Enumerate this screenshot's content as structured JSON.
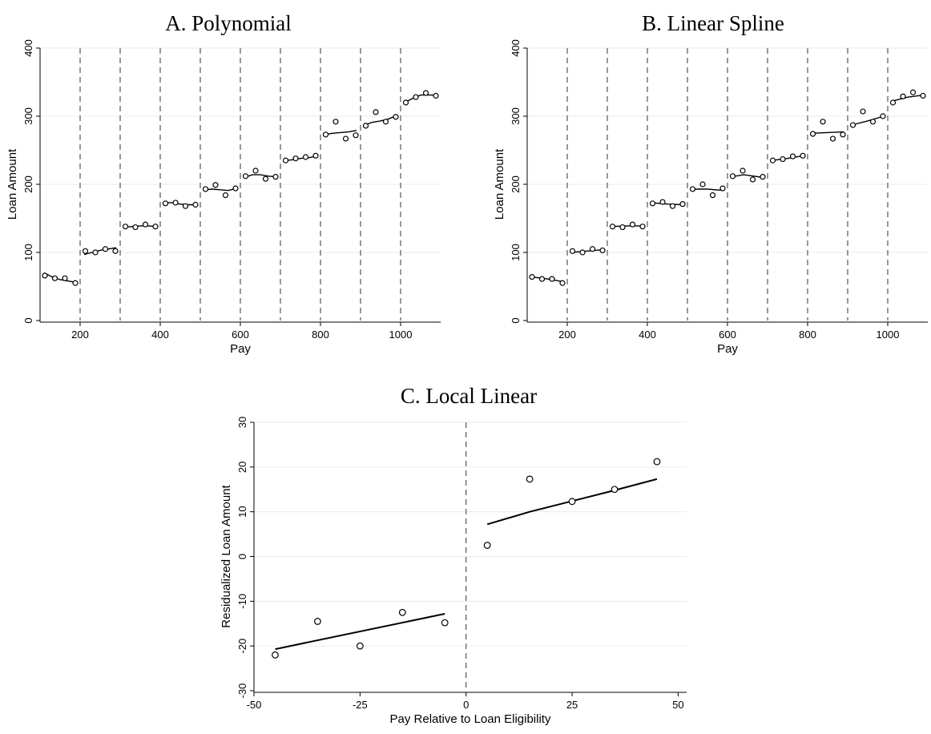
{
  "chart_data": [
    {
      "type": "scatter",
      "title": "A. Polynomial",
      "xlabel": "Pay",
      "ylabel": "Loan Amount",
      "xlim": [
        100,
        1100
      ],
      "ylim": [
        0,
        400
      ],
      "xticks": [
        "200",
        "400",
        "600",
        "800",
        "1000"
      ],
      "yticks": [
        "0",
        "100",
        "200",
        "300",
        "400"
      ],
      "grid": true,
      "cutoffs": [
        200,
        300,
        400,
        500,
        600,
        700,
        800,
        900,
        1000
      ],
      "points": [
        [
          112,
          66
        ],
        [
          137,
          62
        ],
        [
          162,
          62
        ],
        [
          188,
          55
        ],
        [
          213,
          102
        ],
        [
          238,
          100
        ],
        [
          263,
          105
        ],
        [
          288,
          102
        ],
        [
          313,
          138
        ],
        [
          338,
          137
        ],
        [
          363,
          141
        ],
        [
          388,
          138
        ],
        [
          413,
          172
        ],
        [
          438,
          173
        ],
        [
          463,
          168
        ],
        [
          488,
          170
        ],
        [
          513,
          193
        ],
        [
          538,
          199
        ],
        [
          563,
          184
        ],
        [
          588,
          194
        ],
        [
          613,
          212
        ],
        [
          638,
          220
        ],
        [
          663,
          208
        ],
        [
          688,
          211
        ],
        [
          713,
          235
        ],
        [
          738,
          238
        ],
        [
          763,
          240
        ],
        [
          788,
          242
        ],
        [
          813,
          273
        ],
        [
          838,
          292
        ],
        [
          863,
          267
        ],
        [
          888,
          272
        ],
        [
          913,
          286
        ],
        [
          938,
          306
        ],
        [
          963,
          292
        ],
        [
          988,
          299
        ],
        [
          1013,
          320
        ],
        [
          1038,
          328
        ],
        [
          1063,
          334
        ],
        [
          1088,
          330
        ]
      ],
      "fit_lines": [
        [
          [
            110,
            70
          ],
          [
            130,
            64
          ],
          [
            150,
            60
          ],
          [
            170,
            58
          ],
          [
            190,
            56
          ]
        ],
        [
          [
            210,
            97
          ],
          [
            230,
            100
          ],
          [
            250,
            103
          ],
          [
            270,
            105
          ],
          [
            290,
            107
          ]
        ],
        [
          [
            310,
            137
          ],
          [
            330,
            138
          ],
          [
            350,
            139
          ],
          [
            370,
            139
          ],
          [
            390,
            138
          ]
        ],
        [
          [
            410,
            173
          ],
          [
            430,
            173
          ],
          [
            450,
            171
          ],
          [
            470,
            170
          ],
          [
            490,
            170
          ]
        ],
        [
          [
            510,
            192
          ],
          [
            530,
            193
          ],
          [
            550,
            192
          ],
          [
            570,
            191
          ],
          [
            590,
            194
          ]
        ],
        [
          [
            610,
            210
          ],
          [
            630,
            214
          ],
          [
            650,
            214
          ],
          [
            670,
            212
          ],
          [
            690,
            211
          ]
        ],
        [
          [
            710,
            235
          ],
          [
            730,
            236
          ],
          [
            750,
            238
          ],
          [
            770,
            239
          ],
          [
            790,
            241
          ]
        ],
        [
          [
            810,
            273
          ],
          [
            830,
            275
          ],
          [
            850,
            276
          ],
          [
            870,
            277
          ],
          [
            890,
            279
          ]
        ],
        [
          [
            910,
            287
          ],
          [
            930,
            291
          ],
          [
            950,
            293
          ],
          [
            970,
            296
          ],
          [
            990,
            301
          ]
        ],
        [
          [
            1010,
            320
          ],
          [
            1030,
            326
          ],
          [
            1050,
            331
          ],
          [
            1070,
            331
          ],
          [
            1090,
            331
          ]
        ]
      ]
    },
    {
      "type": "scatter",
      "title": "B. Linear Spline",
      "xlabel": "Pay",
      "ylabel": "Loan Amount",
      "xlim": [
        100,
        1100
      ],
      "ylim": [
        0,
        400
      ],
      "xticks": [
        "200",
        "400",
        "600",
        "800",
        "1000"
      ],
      "yticks": [
        "0",
        "100",
        "200",
        "300",
        "400"
      ],
      "grid": true,
      "cutoffs": [
        200,
        300,
        400,
        500,
        600,
        700,
        800,
        900,
        1000
      ],
      "points": [
        [
          112,
          64
        ],
        [
          137,
          61
        ],
        [
          162,
          61
        ],
        [
          188,
          55
        ],
        [
          213,
          102
        ],
        [
          238,
          100
        ],
        [
          263,
          105
        ],
        [
          288,
          103
        ],
        [
          313,
          138
        ],
        [
          338,
          137
        ],
        [
          363,
          141
        ],
        [
          388,
          138
        ],
        [
          413,
          172
        ],
        [
          438,
          174
        ],
        [
          463,
          168
        ],
        [
          488,
          171
        ],
        [
          513,
          193
        ],
        [
          538,
          200
        ],
        [
          563,
          184
        ],
        [
          588,
          194
        ],
        [
          613,
          212
        ],
        [
          638,
          220
        ],
        [
          663,
          207
        ],
        [
          688,
          211
        ],
        [
          713,
          235
        ],
        [
          738,
          237
        ],
        [
          763,
          241
        ],
        [
          788,
          242
        ],
        [
          813,
          274
        ],
        [
          838,
          292
        ],
        [
          863,
          267
        ],
        [
          888,
          273
        ],
        [
          913,
          287
        ],
        [
          938,
          307
        ],
        [
          963,
          292
        ],
        [
          988,
          300
        ],
        [
          1013,
          320
        ],
        [
          1038,
          329
        ],
        [
          1063,
          335
        ],
        [
          1088,
          330
        ]
      ],
      "fit_lines": [
        [
          [
            110,
            64
          ],
          [
            150,
            61
          ],
          [
            190,
            57
          ]
        ],
        [
          [
            210,
            100
          ],
          [
            250,
            102
          ],
          [
            290,
            104
          ]
        ],
        [
          [
            310,
            138
          ],
          [
            350,
            139
          ],
          [
            390,
            139
          ]
        ],
        [
          [
            410,
            173
          ],
          [
            450,
            171
          ],
          [
            490,
            170
          ]
        ],
        [
          [
            510,
            193
          ],
          [
            550,
            193
          ],
          [
            590,
            191
          ]
        ],
        [
          [
            610,
            211
          ],
          [
            640,
            214
          ],
          [
            690,
            210
          ]
        ],
        [
          [
            710,
            235
          ],
          [
            750,
            238
          ],
          [
            790,
            242
          ]
        ],
        [
          [
            810,
            275
          ],
          [
            850,
            276
          ],
          [
            890,
            277
          ]
        ],
        [
          [
            910,
            287
          ],
          [
            950,
            293
          ],
          [
            990,
            300
          ]
        ],
        [
          [
            1010,
            322
          ],
          [
            1050,
            328
          ],
          [
            1090,
            331
          ]
        ]
      ]
    },
    {
      "type": "scatter",
      "title": "C. Local Linear",
      "xlabel": "Pay Relative to Loan Eligibility",
      "ylabel": "Residualized Loan Amount",
      "xlim": [
        -50,
        52
      ],
      "ylim": [
        -30,
        30
      ],
      "xticks": [
        "-50",
        "-25",
        "0",
        "25",
        "50"
      ],
      "yticks": [
        "-30",
        "-20",
        "-10",
        "0",
        "10",
        "20",
        "30"
      ],
      "grid": true,
      "cutoffs": [
        0
      ],
      "points": [
        [
          -45,
          -22
        ],
        [
          -35,
          -14.5
        ],
        [
          -25,
          -20
        ],
        [
          -15,
          -12.5
        ],
        [
          -5,
          -14.8
        ],
        [
          5,
          2.5
        ],
        [
          15,
          17.3
        ],
        [
          25,
          12.3
        ],
        [
          35,
          15
        ],
        [
          45,
          21.2
        ]
      ],
      "fit_lines": [
        [
          [
            -45,
            -20.7
          ],
          [
            -5,
            -12.8
          ]
        ],
        [
          [
            5,
            7.2
          ],
          [
            15,
            10
          ],
          [
            25,
            12.4
          ],
          [
            35,
            14.8
          ],
          [
            45,
            17.3
          ]
        ]
      ]
    }
  ]
}
